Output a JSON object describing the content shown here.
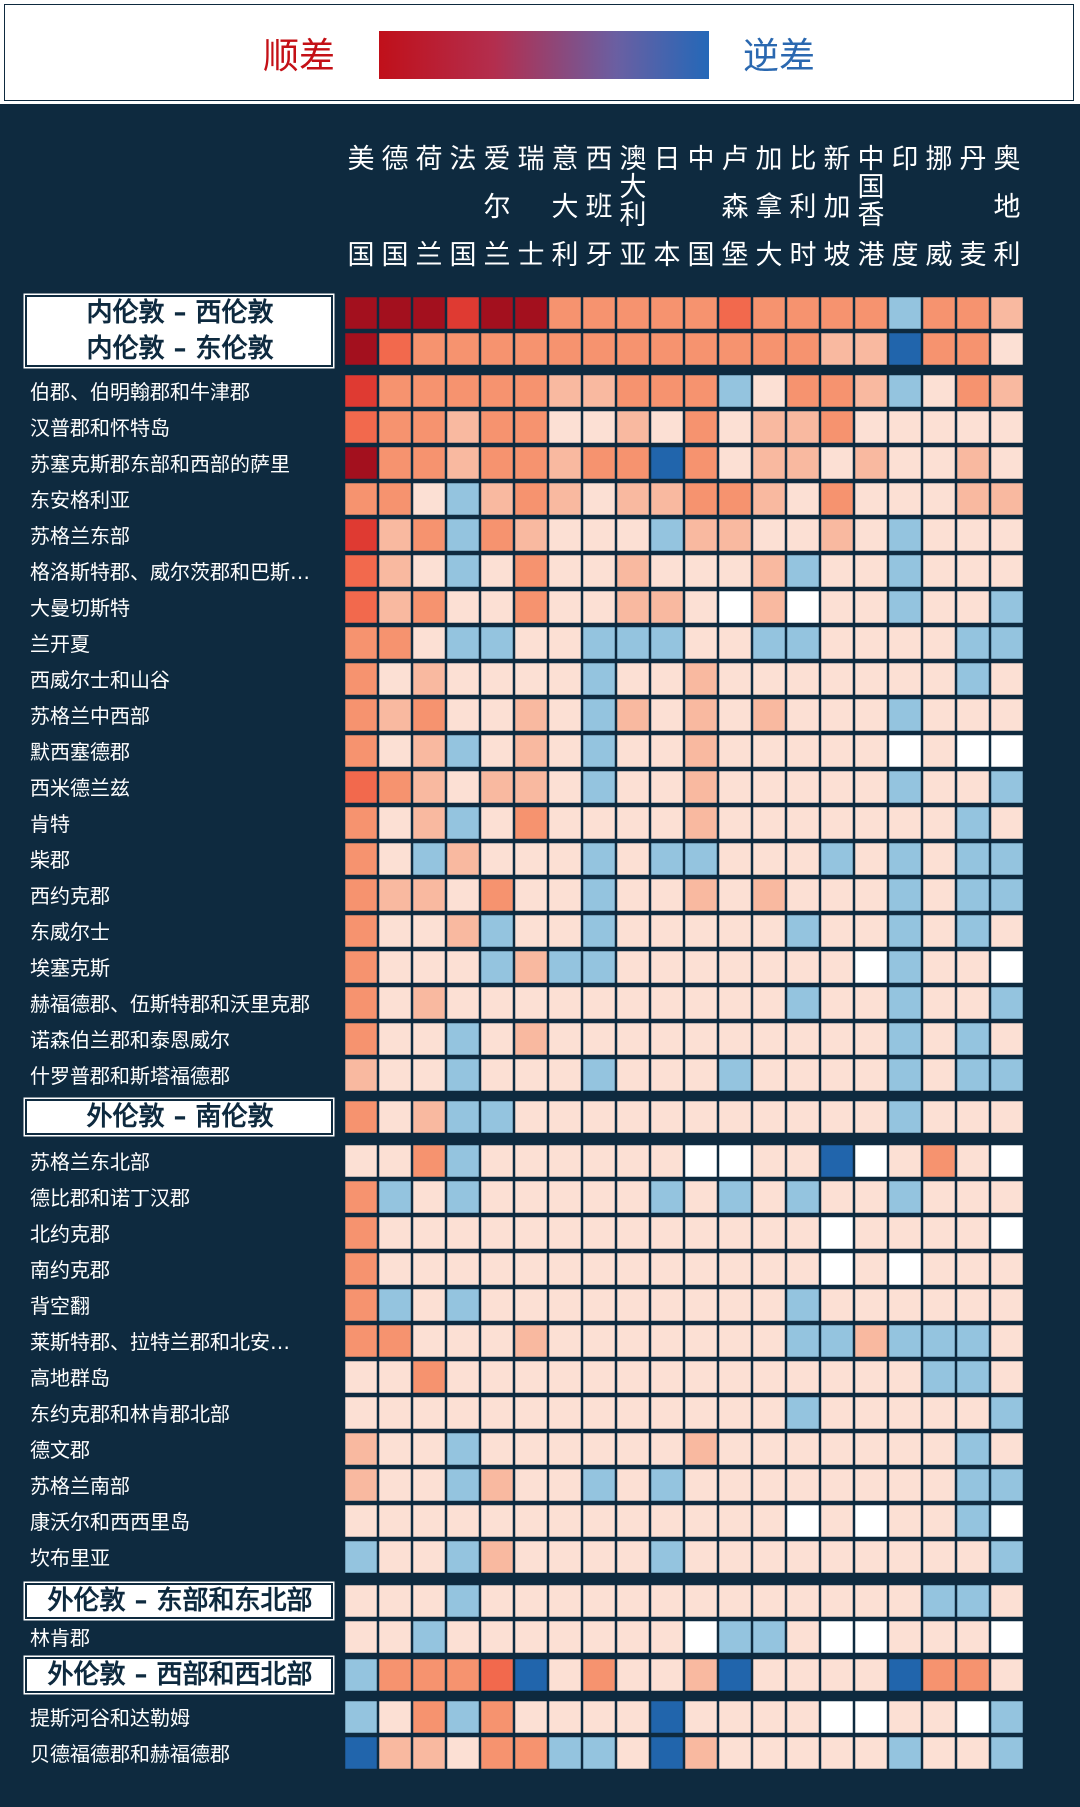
{
  "legend": {
    "left_label": "顺差",
    "right_label": "逆差",
    "left_color": "#c0101a",
    "right_color": "#2468b8"
  },
  "chart_data": {
    "type": "heatmap",
    "value_scale": "diverging: +3 = 顺差 (dark red), 0 = neutral, -3 = 逆差 (dark blue); null = blank",
    "columns": [
      [
        "美",
        "国"
      ],
      [
        "德",
        "国"
      ],
      [
        "荷",
        "兰"
      ],
      [
        "法",
        "国"
      ],
      [
        "爱",
        "尔",
        "兰"
      ],
      [
        "瑞",
        "士"
      ],
      [
        "意",
        "大",
        "利"
      ],
      [
        "西",
        "班",
        "牙"
      ],
      [
        "澳",
        "大",
        "利",
        "亚"
      ],
      [
        "日",
        "本"
      ],
      [
        "中",
        "国"
      ],
      [
        "卢",
        "森",
        "堡"
      ],
      [
        "加",
        "拿",
        "大"
      ],
      [
        "比",
        "利",
        "时"
      ],
      [
        "新",
        "加",
        "坡"
      ],
      [
        "中",
        "国",
        "香",
        "港"
      ],
      [
        "印",
        "度"
      ],
      [
        "挪",
        "威"
      ],
      [
        "丹",
        "麦"
      ],
      [
        "奥",
        "地",
        "利"
      ]
    ],
    "rows": [
      {
        "label": "内伦敦 – 西伦敦",
        "group": true,
        "values": [
          3,
          3,
          3,
          2.5,
          3,
          3,
          1.5,
          1.5,
          1.5,
          1.5,
          1.5,
          2,
          1.5,
          1.5,
          1.5,
          1.5,
          -1,
          1.5,
          1.5,
          1
        ]
      },
      {
        "label": "内伦敦 – 东伦敦",
        "group": true,
        "values": [
          3,
          2,
          1.5,
          1.5,
          1.5,
          1.5,
          1.5,
          1.5,
          1.5,
          1.5,
          1.5,
          1.5,
          1.5,
          1.5,
          1,
          1,
          -3,
          1.5,
          1.5,
          0.5
        ]
      },
      {
        "label": "伯郡、伯明翰郡和牛津郡",
        "values": [
          2.5,
          1.5,
          1.5,
          1.5,
          1.5,
          1.5,
          1,
          1,
          1.5,
          1.5,
          1.5,
          -1,
          0.5,
          1.5,
          1.5,
          1,
          -1,
          0.5,
          1.5,
          1
        ]
      },
      {
        "label": "汉普郡和怀特岛",
        "values": [
          2,
          1.5,
          1.5,
          1,
          1.5,
          1.5,
          0.5,
          0.5,
          1,
          0.5,
          1.5,
          0.5,
          1,
          1,
          1.5,
          0.5,
          0.5,
          0.5,
          0.5,
          0.5
        ]
      },
      {
        "label": "苏塞克斯郡东部和西部的萨里",
        "values": [
          3,
          1.5,
          1.5,
          1,
          1.5,
          1.5,
          1,
          1.5,
          1.5,
          -3,
          1.5,
          0.5,
          1,
          1,
          0.5,
          1,
          0.5,
          0.5,
          1,
          0.5
        ]
      },
      {
        "label": "东安格利亚",
        "values": [
          1.5,
          1.5,
          0.5,
          -1,
          1,
          1.5,
          1,
          0.5,
          1,
          1,
          1.5,
          1.5,
          1,
          0.5,
          1.5,
          0.5,
          0.5,
          0.5,
          1,
          1
        ]
      },
      {
        "label": "苏格兰东部",
        "values": [
          2.5,
          1,
          1.5,
          -1,
          1.5,
          1,
          0.5,
          0.5,
          0.5,
          -1,
          1,
          1,
          0.5,
          0.5,
          1,
          0.5,
          -1,
          0.5,
          0.5,
          0.5
        ]
      },
      {
        "label": "格洛斯特郡、威尔茨郡和巴斯…",
        "values": [
          2,
          1,
          0.5,
          -1,
          0.5,
          1.5,
          0.5,
          0.5,
          1,
          0.5,
          0.5,
          0.5,
          1,
          -1,
          0.5,
          0.5,
          -1,
          0.5,
          0.5,
          0.5
        ]
      },
      {
        "label": "大曼切斯特",
        "values": [
          2,
          1,
          1.5,
          0.5,
          0.5,
          1.5,
          0.5,
          0.5,
          1,
          1,
          0.5,
          null,
          1,
          null,
          0.5,
          0.5,
          -1,
          0.5,
          0.5,
          -1
        ]
      },
      {
        "label": "兰开夏",
        "values": [
          1.5,
          1.5,
          0.5,
          -1,
          -1,
          0.5,
          0.5,
          -1,
          -1,
          -1,
          0.5,
          0.5,
          -1,
          -1,
          0.5,
          0.5,
          0.5,
          0.5,
          -1,
          -1
        ]
      },
      {
        "label": "西威尔士和山谷",
        "values": [
          1.5,
          0.5,
          1,
          0.5,
          0.5,
          0.5,
          0.5,
          -1,
          0.5,
          0.5,
          1,
          0.5,
          0.5,
          0.5,
          0.5,
          0.5,
          0.5,
          0.5,
          -1,
          0.5
        ]
      },
      {
        "label": "苏格兰中西部",
        "values": [
          1.5,
          1,
          1.5,
          0.5,
          0.5,
          1,
          0.5,
          -1,
          1,
          0.5,
          1,
          0.5,
          1,
          0.5,
          0.5,
          0.5,
          -1,
          0.5,
          0.5,
          0.5
        ]
      },
      {
        "label": "默西塞德郡",
        "values": [
          1.5,
          0.5,
          1,
          -1,
          0.5,
          1,
          0.5,
          -1,
          0.5,
          0.5,
          1,
          0.5,
          0.5,
          0.5,
          0.5,
          0.5,
          null,
          0.5,
          null,
          null
        ]
      },
      {
        "label": "西米德兰兹",
        "values": [
          2,
          1.5,
          1,
          0.5,
          1,
          1,
          0.5,
          -1,
          0.5,
          0.5,
          1,
          0.5,
          0.5,
          0.5,
          0.5,
          0.5,
          -1,
          0.5,
          0.5,
          -1
        ]
      },
      {
        "label": "肯特",
        "values": [
          1.5,
          0.5,
          1,
          -1,
          0.5,
          1.5,
          0.5,
          0.5,
          0.5,
          0.5,
          1,
          0.5,
          0.5,
          0.5,
          0.5,
          0.5,
          0.5,
          0.5,
          -1,
          0.5
        ]
      },
      {
        "label": "柴郡",
        "values": [
          1.5,
          0.5,
          -1,
          1,
          0.5,
          0.5,
          0.5,
          -1,
          0.5,
          -1,
          -1,
          0.5,
          0.5,
          0.5,
          -1,
          0.5,
          -1,
          0.5,
          -1,
          -1
        ]
      },
      {
        "label": "西约克郡",
        "values": [
          1.5,
          1,
          1,
          0.5,
          1.5,
          0.5,
          0.5,
          -1,
          0.5,
          0.5,
          1,
          0.5,
          1,
          0.5,
          0.5,
          0.5,
          -1,
          0.5,
          -1,
          -1
        ]
      },
      {
        "label": "东威尔士",
        "values": [
          1.5,
          0.5,
          0.5,
          1,
          -1,
          0.5,
          0.5,
          -1,
          0.5,
          0.5,
          0.5,
          0.5,
          0.5,
          -1,
          0.5,
          0.5,
          -1,
          0.5,
          -1,
          0.5
        ]
      },
      {
        "label": "埃塞克斯",
        "values": [
          1.5,
          0.5,
          0.5,
          0.5,
          -1,
          1,
          -1,
          -1,
          0.5,
          0.5,
          0.5,
          0.5,
          0.5,
          0.5,
          0.5,
          null,
          -1,
          0.5,
          0.5,
          null
        ]
      },
      {
        "label": "赫福德郡、伍斯特郡和沃里克郡",
        "values": [
          1.5,
          0.5,
          1,
          0.5,
          0.5,
          0.5,
          0.5,
          0.5,
          0.5,
          0.5,
          0.5,
          0.5,
          0.5,
          -1,
          0.5,
          0.5,
          -1,
          0.5,
          0.5,
          -1
        ]
      },
      {
        "label": "诺森伯兰郡和泰恩威尔",
        "values": [
          1.5,
          0.5,
          0.5,
          -1,
          0.5,
          1,
          0.5,
          0.5,
          0.5,
          0.5,
          0.5,
          0.5,
          0.5,
          0.5,
          0.5,
          0.5,
          -1,
          0.5,
          -1,
          0.5
        ]
      },
      {
        "label": "什罗普郡和斯塔福德郡",
        "values": [
          1,
          0.5,
          0.5,
          -1,
          0.5,
          0.5,
          0.5,
          -1,
          0.5,
          0.5,
          0.5,
          -1,
          0.5,
          0.5,
          0.5,
          0.5,
          -1,
          0.5,
          -1,
          -1
        ]
      },
      {
        "label": "外伦敦 – 南伦敦",
        "group": true,
        "values": [
          1.5,
          0.5,
          1,
          -1,
          -1,
          0.5,
          0.5,
          0.5,
          0.5,
          0.5,
          0.5,
          0.5,
          0.5,
          0.5,
          0.5,
          0.5,
          -1,
          0.5,
          0.5,
          0.5
        ]
      },
      {
        "label": "苏格兰东北部",
        "values": [
          0.5,
          0.5,
          1.5,
          -1,
          0.5,
          0.5,
          0.5,
          0.5,
          0.5,
          0.5,
          null,
          null,
          0.5,
          0.5,
          -3,
          null,
          0.5,
          1.5,
          0.5,
          null
        ]
      },
      {
        "label": "德比郡和诺丁汉郡",
        "values": [
          1.5,
          -1,
          0.5,
          -1,
          0.5,
          0.5,
          0.5,
          0.5,
          0.5,
          -1,
          0.5,
          -1,
          0.5,
          -1,
          0.5,
          0.5,
          -1,
          0.5,
          0.5,
          0.5
        ]
      },
      {
        "label": "北约克郡",
        "values": [
          1.5,
          0.5,
          0.5,
          0.5,
          0.5,
          0.5,
          0.5,
          0.5,
          0.5,
          0.5,
          0.5,
          0.5,
          0.5,
          0.5,
          null,
          0.5,
          0.5,
          0.5,
          0.5,
          null
        ]
      },
      {
        "label": "南约克郡",
        "values": [
          1.5,
          0.5,
          0.5,
          0.5,
          0.5,
          0.5,
          0.5,
          0.5,
          0.5,
          0.5,
          0.5,
          0.5,
          0.5,
          0.5,
          null,
          0.5,
          null,
          0.5,
          0.5,
          0.5
        ]
      },
      {
        "label": "背空翻",
        "values": [
          1.5,
          -1,
          0.5,
          -1,
          0.5,
          0.5,
          0.5,
          0.5,
          0.5,
          0.5,
          0.5,
          0.5,
          0.5,
          -1,
          0.5,
          0.5,
          0.5,
          0.5,
          0.5,
          0.5
        ]
      },
      {
        "label": "莱斯特郡、拉特兰郡和北安…",
        "values": [
          1.5,
          1.5,
          0.5,
          0.5,
          0.5,
          1,
          0.5,
          0.5,
          0.5,
          0.5,
          0.5,
          0.5,
          0.5,
          -1,
          -1,
          1,
          -1,
          -1,
          -1,
          0.5
        ]
      },
      {
        "label": "高地群岛",
        "values": [
          0.5,
          0.5,
          1.5,
          0.5,
          0.5,
          0.5,
          0.5,
          0.5,
          0.5,
          0.5,
          0.5,
          0.5,
          0.5,
          0.5,
          0.5,
          0.5,
          0.5,
          -1,
          -1,
          0.5
        ]
      },
      {
        "label": "东约克郡和林肯郡北部",
        "values": [
          0.5,
          0.5,
          0.5,
          0.5,
          0.5,
          0.5,
          0.5,
          0.5,
          0.5,
          0.5,
          0.5,
          0.5,
          0.5,
          -1,
          0.5,
          0.5,
          0.5,
          0.5,
          0.5,
          -1
        ]
      },
      {
        "label": "德文郡",
        "values": [
          1,
          0.5,
          0.5,
          -1,
          0.5,
          0.5,
          0.5,
          0.5,
          0.5,
          0.5,
          1,
          0.5,
          0.5,
          0.5,
          0.5,
          0.5,
          0.5,
          0.5,
          -1,
          0.5
        ]
      },
      {
        "label": "苏格兰南部",
        "values": [
          1,
          0.5,
          0.5,
          -1,
          1,
          0.5,
          0.5,
          -1,
          0.5,
          -1,
          0.5,
          0.5,
          0.5,
          0.5,
          0.5,
          0.5,
          0.5,
          0.5,
          -1,
          -1
        ]
      },
      {
        "label": "康沃尔和西西里岛",
        "values": [
          0.5,
          0.5,
          0.5,
          0.5,
          0.5,
          0.5,
          0.5,
          0.5,
          0.5,
          0.5,
          0.5,
          0.5,
          0.5,
          null,
          0.5,
          null,
          0.5,
          0.5,
          -1,
          null
        ]
      },
      {
        "label": "坎布里亚",
        "values": [
          -1,
          0.5,
          0.5,
          -1,
          1,
          0.5,
          0.5,
          0.5,
          0.5,
          -1,
          0.5,
          0.5,
          0.5,
          0.5,
          0.5,
          0.5,
          0.5,
          0.5,
          0.5,
          -1
        ]
      },
      {
        "label": "外伦敦 – 东部和东北部",
        "group": true,
        "values": [
          0.5,
          0.5,
          0.5,
          -1,
          0.5,
          0.5,
          0.5,
          0.5,
          0.5,
          0.5,
          0.5,
          0.5,
          0.5,
          0.5,
          0.5,
          0.5,
          0.5,
          -1,
          -1,
          0.5
        ]
      },
      {
        "label": "林肯郡",
        "values": [
          0.5,
          0.5,
          -1,
          0.5,
          0.5,
          0.5,
          0.5,
          0.5,
          0.5,
          0.5,
          null,
          -1,
          -1,
          0.5,
          null,
          null,
          0.5,
          0.5,
          0.5,
          null
        ]
      },
      {
        "label": "外伦敦 – 西部和西北部",
        "group": true,
        "values": [
          -1,
          1.5,
          1.5,
          1.5,
          2,
          -3,
          0.5,
          1.5,
          0.5,
          0.5,
          1,
          -3,
          0.5,
          0.5,
          0.5,
          0.5,
          -3,
          1.5,
          1.5,
          0.5
        ]
      },
      {
        "label": "提斯河谷和达勒姆",
        "values": [
          -1,
          0.5,
          1.5,
          -1,
          1.5,
          0.5,
          0.5,
          0.5,
          0.5,
          -3,
          0.5,
          0.5,
          0.5,
          0.5,
          null,
          null,
          0.5,
          0.5,
          null,
          -1
        ]
      },
      {
        "label": "贝德福德郡和赫福德郡",
        "values": [
          -3,
          1,
          1,
          0.5,
          1.5,
          1.5,
          -1,
          -1,
          0.5,
          -3,
          1,
          0.5,
          0.5,
          0.5,
          0.5,
          0.5,
          -1,
          0.5,
          0.5,
          -1
        ]
      }
    ]
  }
}
